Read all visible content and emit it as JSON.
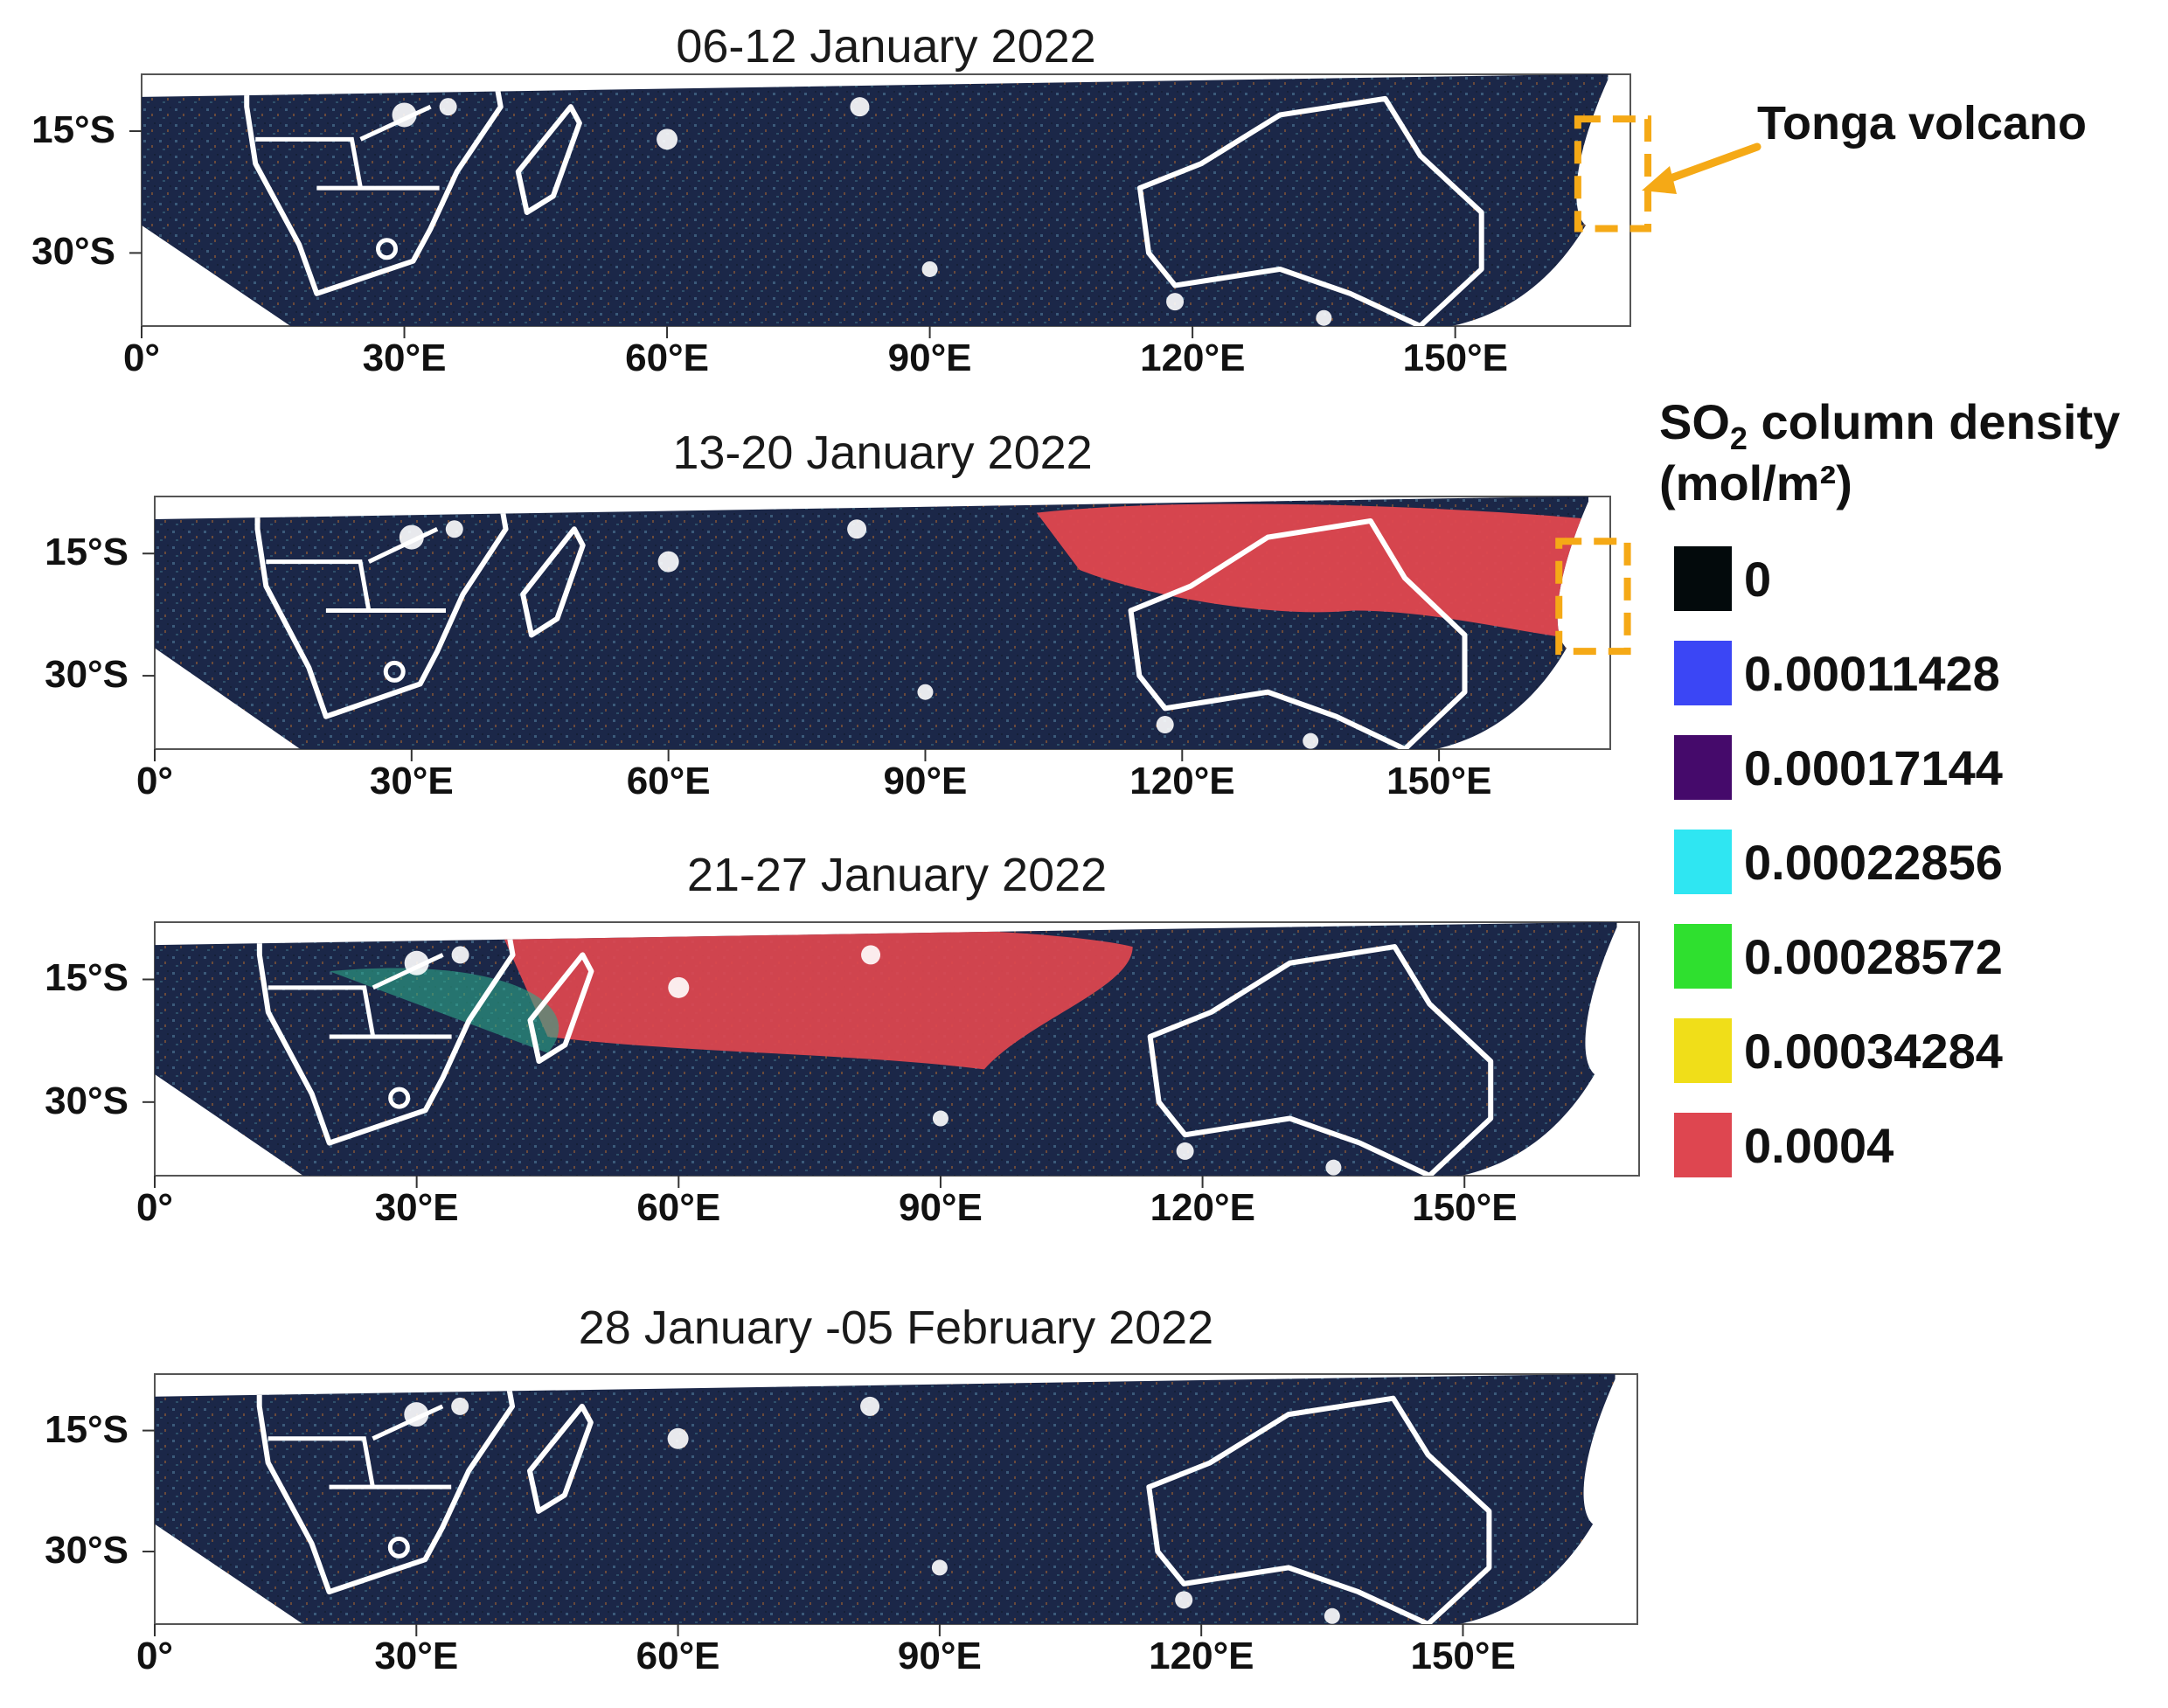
{
  "panels": [
    {
      "title": "06-12 January 2022",
      "plume": "none",
      "box": true
    },
    {
      "title": "13-20 January 2022",
      "plume": "east",
      "box": true
    },
    {
      "title": "21-27 January 2022",
      "plume": "west",
      "box": false
    },
    {
      "title": "28 January -05 February 2022",
      "plume": "none",
      "box": false
    }
  ],
  "x_ticks": [
    "0°",
    "30°E",
    "60°E",
    "90°E",
    "120°E",
    "150°E"
  ],
  "y_ticks": [
    "15°S",
    "30°S"
  ],
  "annotation": {
    "label": "Tonga volcano",
    "color": "#F5A916"
  },
  "legend": {
    "title_line1_prefix": "SO",
    "title_line1_sub": "2",
    "title_line1_suffix": " column density",
    "title_line2": "(mol/m²)",
    "entries": [
      {
        "label": "0",
        "color": "#030a0c"
      },
      {
        "label": "0.00011428",
        "color": "#3b46f5"
      },
      {
        "label": "0.00017144",
        "color": "#450a6b"
      },
      {
        "label": "0.00022856",
        "color": "#2fe6f2"
      },
      {
        "label": "0.00028572",
        "color": "#2fe02f"
      },
      {
        "label": "0.00034284",
        "color": "#f0de19"
      },
      {
        "label": "0.0004",
        "color": "#de4650"
      }
    ]
  },
  "colors": {
    "background": "#1a2646",
    "coast": "#ffffff",
    "plume": "#e0474f"
  }
}
